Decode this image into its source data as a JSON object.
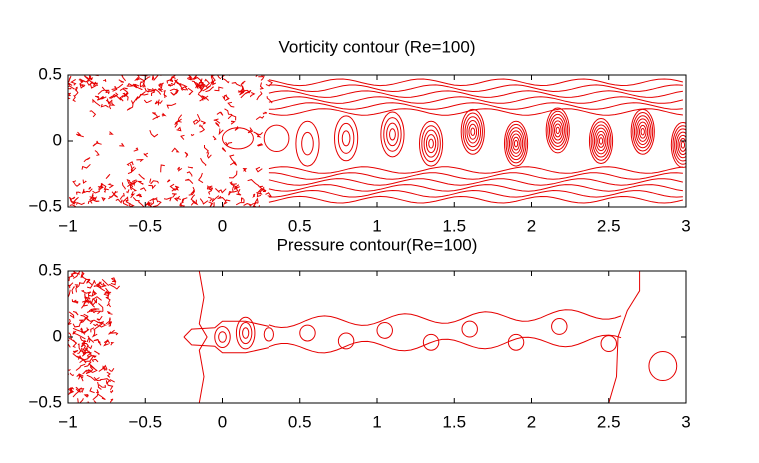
{
  "chart_data": [
    {
      "type": "contour",
      "title": "Vorticity contour (Re=100)",
      "color": "#e60000",
      "xlim": [
        -1,
        3
      ],
      "ylim": [
        -0.5,
        0.5
      ],
      "xticks": [
        {
          "value": -1,
          "label": "−1"
        },
        {
          "value": -0.5,
          "label": "−0.5"
        },
        0,
        0.5,
        1,
        1.5,
        2,
        2.5,
        3
      ],
      "yticks": [
        {
          "value": -0.5,
          "label": "−0.5"
        },
        0,
        0.5
      ]
    },
    {
      "type": "contour",
      "title": "Pressure contour(Re=100)",
      "color": "#e60000",
      "xlim": [
        -1,
        3
      ],
      "ylim": [
        -0.5,
        0.5
      ],
      "xticks": [
        {
          "value": -1,
          "label": "−1"
        },
        {
          "value": -0.5,
          "label": "−0.5"
        },
        0,
        0.5,
        1,
        1.5,
        2,
        2.5,
        3
      ],
      "yticks": [
        {
          "value": -0.5,
          "label": "−0.5"
        },
        0,
        0.5
      ]
    }
  ]
}
